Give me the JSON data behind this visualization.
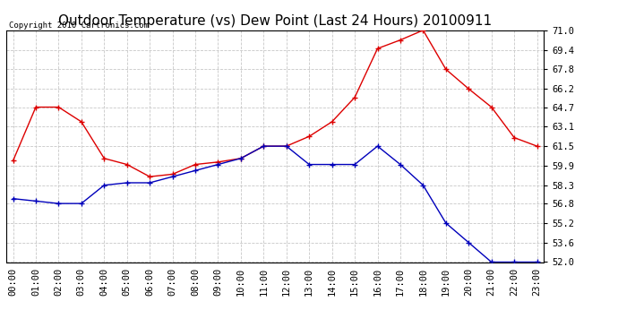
{
  "title": "Outdoor Temperature (vs) Dew Point (Last 24 Hours) 20100911",
  "copyright_text": "Copyright 2010 Cartronics.com",
  "hours": [
    "00:00",
    "01:00",
    "02:00",
    "03:00",
    "04:00",
    "05:00",
    "06:00",
    "07:00",
    "08:00",
    "09:00",
    "10:00",
    "11:00",
    "12:00",
    "13:00",
    "14:00",
    "15:00",
    "16:00",
    "17:00",
    "18:00",
    "19:00",
    "20:00",
    "21:00",
    "22:00",
    "23:00"
  ],
  "temp_red": [
    60.3,
    64.7,
    64.7,
    63.5,
    60.5,
    60.0,
    59.0,
    59.2,
    60.0,
    60.2,
    60.5,
    61.5,
    61.5,
    62.3,
    63.5,
    65.5,
    69.5,
    70.2,
    71.0,
    67.8,
    66.2,
    64.7,
    62.2,
    61.5
  ],
  "dew_blue": [
    57.2,
    57.0,
    56.8,
    56.8,
    58.3,
    58.5,
    58.5,
    59.0,
    59.5,
    60.0,
    60.5,
    61.5,
    61.5,
    60.0,
    60.0,
    60.0,
    61.5,
    60.0,
    58.3,
    55.2,
    53.6,
    52.0,
    52.0,
    52.0
  ],
  "ylim_min": 52.0,
  "ylim_max": 71.0,
  "yticks": [
    52.0,
    53.6,
    55.2,
    56.8,
    58.3,
    59.9,
    61.5,
    63.1,
    64.7,
    66.2,
    67.8,
    69.4,
    71.0
  ],
  "bg_color": "#ffffff",
  "grid_color": "#c8c8c8",
  "red_color": "#dd0000",
  "blue_color": "#0000bb",
  "title_fontsize": 11,
  "tick_fontsize": 7.5,
  "copyright_fontsize": 6.5
}
